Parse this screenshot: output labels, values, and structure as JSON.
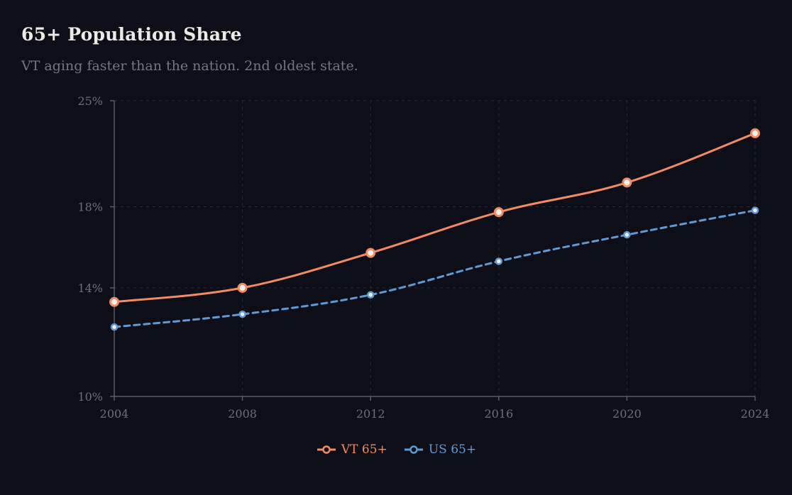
{
  "header": {
    "title": "65+ Population Share",
    "subtitle": "VT aging faster than the nation. 2nd oldest state."
  },
  "colors": {
    "background": "#0e0e18",
    "vt": "#f28a62",
    "us": "#5e9ad6",
    "axis": "#5a5a66",
    "grid": "#2a2a36",
    "tick_text": "#6e6e78"
  },
  "chart_data": {
    "type": "line",
    "x": [
      2004,
      2008,
      2012,
      2016,
      2020,
      2024
    ],
    "xlim": [
      2004,
      2024
    ],
    "ylim": [
      10,
      25
    ],
    "y_scale": "log",
    "y_ticks": [
      10,
      14,
      18,
      25
    ],
    "y_tick_labels": [
      "10%",
      "14%",
      "18%",
      "25%"
    ],
    "x_tick_labels": [
      "2004",
      "2008",
      "2012",
      "2016",
      "2020",
      "2024"
    ],
    "grid": true,
    "legend": "bottom-center",
    "series": [
      {
        "name": "VT 65+",
        "values": [
          13.4,
          14.0,
          15.6,
          17.7,
          19.4,
          22.6
        ],
        "style": "solid"
      },
      {
        "name": "US 65+",
        "values": [
          12.4,
          12.9,
          13.7,
          15.2,
          16.5,
          17.8
        ],
        "style": "dashed"
      }
    ]
  }
}
